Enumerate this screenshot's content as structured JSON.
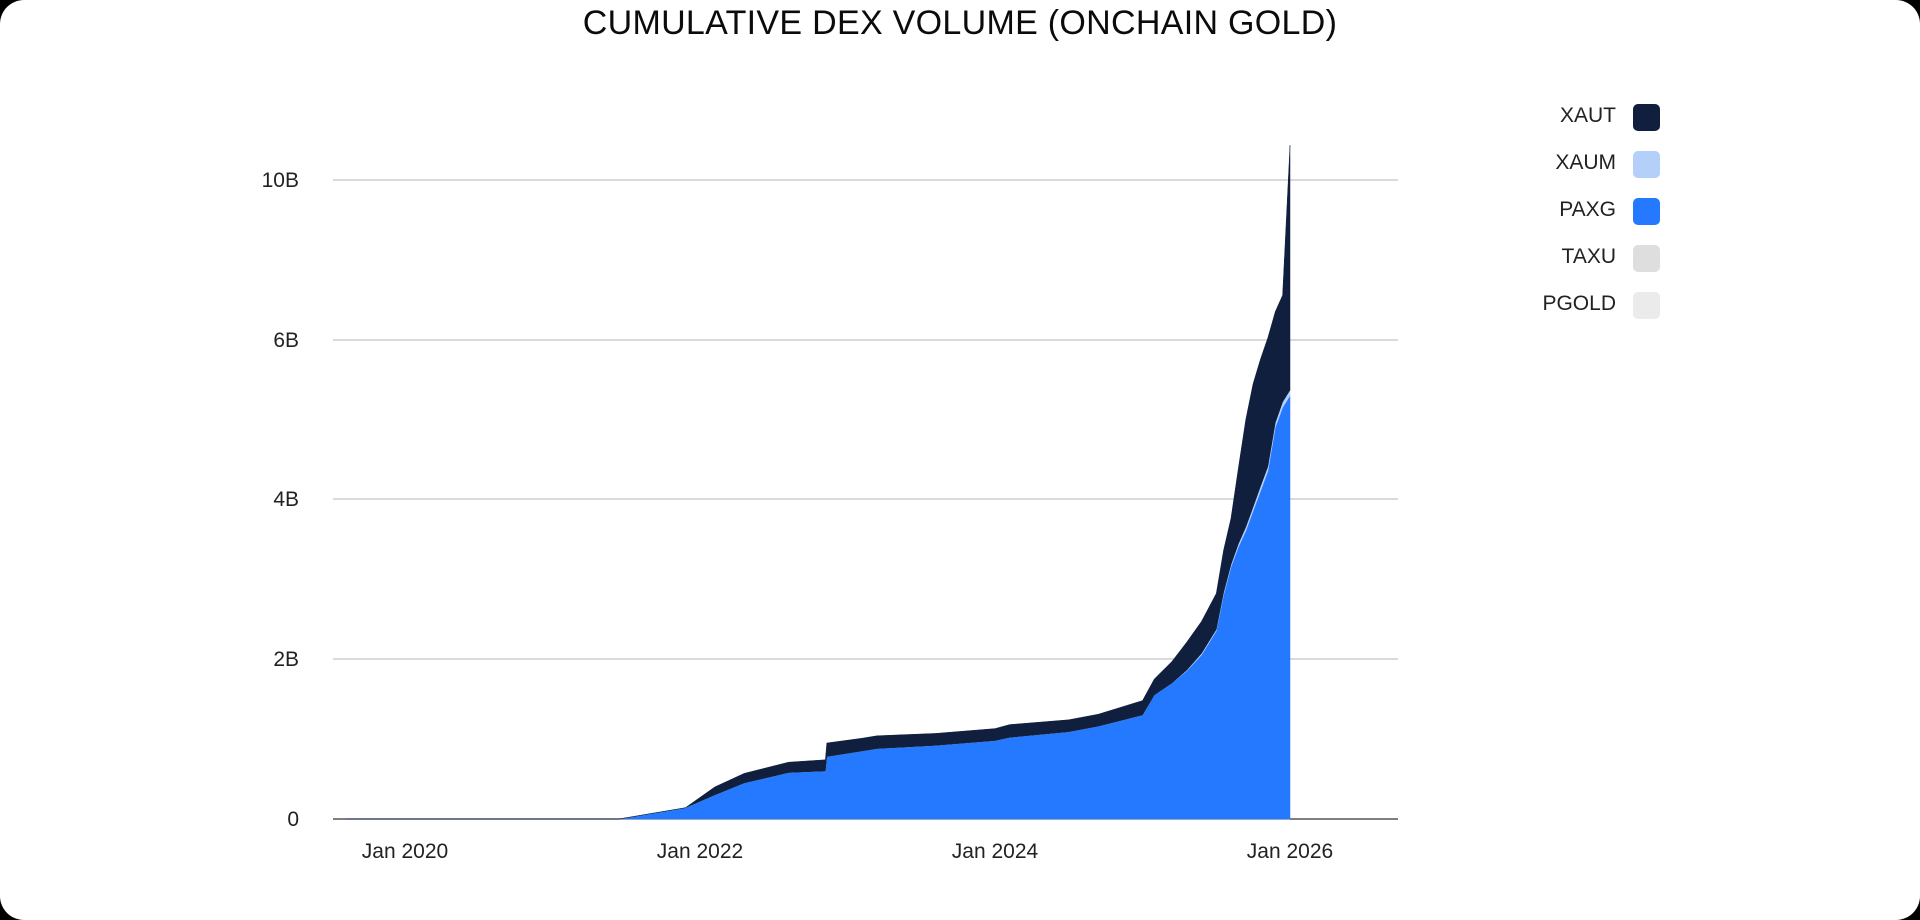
{
  "chart_data": {
    "type": "area",
    "title": "CUMULATIVE DEX VOLUME (ONCHAIN GOLD)",
    "xlabel": "",
    "ylabel": "",
    "stacked": true,
    "x_ticks": [
      "Jan 2020",
      "Jan 2022",
      "Jan 2024",
      "Jan 2026"
    ],
    "y_ticks": [
      {
        "value": 0,
        "label": "0"
      },
      {
        "value": 2,
        "label": "2B"
      },
      {
        "value": 4,
        "label": "4B"
      },
      {
        "value": 6,
        "label": "6B"
      },
      {
        "value": 10,
        "label": "10B"
      }
    ],
    "y_unit": "billions USD",
    "grid": true,
    "legend_position": "right",
    "x": [
      2019.6,
      2021.45,
      2021.9,
      2022.0,
      2022.1,
      2022.3,
      2022.6,
      2022.85,
      2022.86,
      2023.1,
      2023.2,
      2023.6,
      2024.0,
      2024.1,
      2024.5,
      2024.7,
      2025.0,
      2025.08,
      2025.2,
      2025.3,
      2025.4,
      2025.5,
      2025.55,
      2025.6,
      2025.65,
      2025.7,
      2025.75,
      2025.8,
      2025.85,
      2025.9,
      2025.95,
      2026.0
    ],
    "series": [
      {
        "name": "XAUT",
        "color": "#0f1f3d",
        "values": [
          0,
          0,
          0,
          0.05,
          0.1,
          0.12,
          0.13,
          0.14,
          0.17,
          0.16,
          0.16,
          0.15,
          0.15,
          0.16,
          0.15,
          0.15,
          0.18,
          0.2,
          0.27,
          0.35,
          0.4,
          0.45,
          0.53,
          0.58,
          0.95,
          1.35,
          1.55,
          1.6,
          1.65,
          1.75,
          1.9,
          5.5
        ]
      },
      {
        "name": "XAUM",
        "color": "#b3cffa",
        "values": [
          0,
          0,
          0,
          0,
          0,
          0,
          0,
          0,
          0,
          0,
          0,
          0,
          0,
          0,
          0,
          0,
          0,
          0,
          0,
          0.01,
          0.02,
          0.02,
          0.03,
          0.03,
          0.04,
          0.05,
          0.05,
          0.06,
          0.06,
          0.06,
          0.07,
          0.07
        ]
      },
      {
        "name": "PAXG",
        "color": "#2479ff",
        "values": [
          0,
          0,
          0.14,
          0.22,
          0.3,
          0.45,
          0.58,
          0.6,
          0.78,
          0.85,
          0.88,
          0.92,
          0.98,
          1.02,
          1.09,
          1.16,
          1.3,
          1.55,
          1.7,
          1.85,
          2.05,
          2.35,
          2.8,
          3.15,
          3.4,
          3.6,
          3.85,
          4.1,
          4.35,
          4.9,
          5.15,
          5.3
        ]
      },
      {
        "name": "TAXU",
        "color": "#dedede",
        "values": [
          0,
          0,
          0,
          0,
          0,
          0,
          0,
          0,
          0,
          0,
          0,
          0,
          0,
          0,
          0,
          0,
          0,
          0,
          0,
          0,
          0,
          0,
          0,
          0,
          0,
          0,
          0,
          0,
          0,
          0,
          0,
          0
        ]
      },
      {
        "name": "PGOLD",
        "color": "#ebebeb",
        "values": [
          0,
          0,
          0,
          0,
          0,
          0,
          0,
          0,
          0,
          0,
          0,
          0,
          0,
          0,
          0,
          0,
          0,
          0,
          0,
          0,
          0,
          0,
          0,
          0,
          0,
          0,
          0,
          0,
          0,
          0,
          0,
          0
        ]
      }
    ]
  }
}
